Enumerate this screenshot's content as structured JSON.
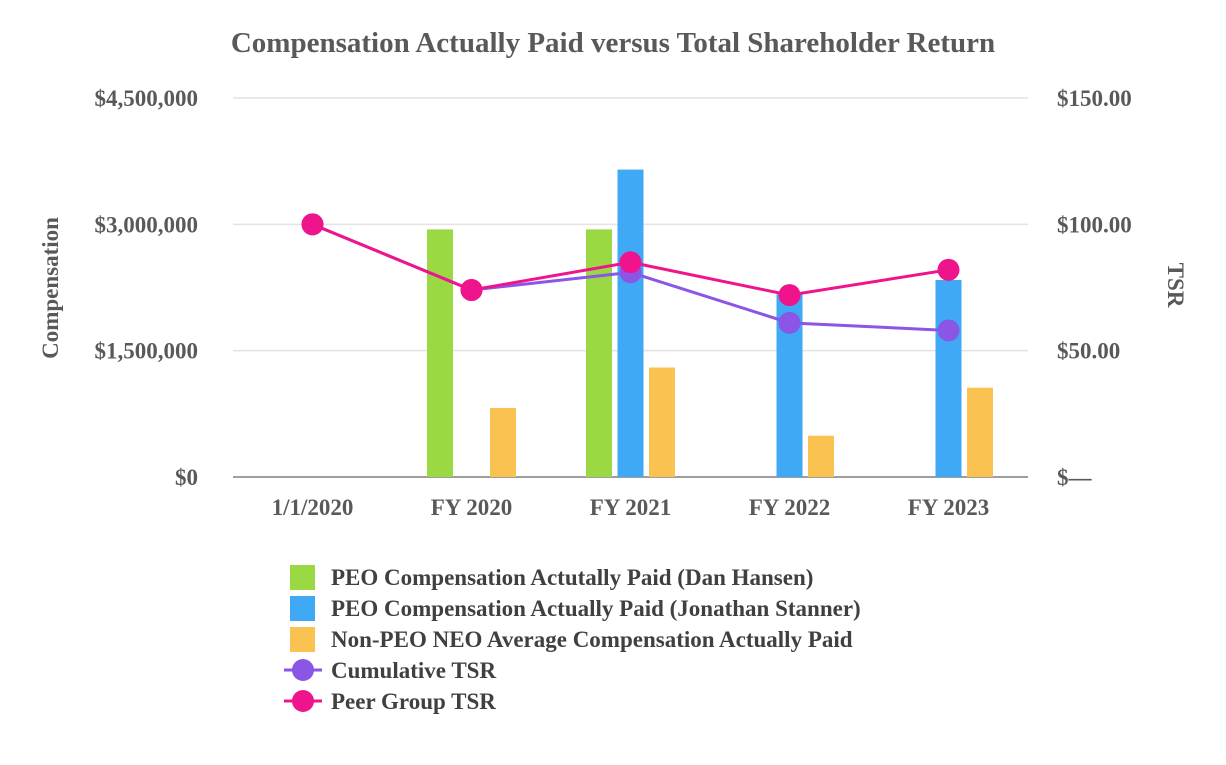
{
  "chart_data": {
    "type": "bar",
    "title": "Compensation Actually Paid versus Total Shareholder Return",
    "categories": [
      "1/1/2020",
      "FY 2020",
      "FY 2021",
      "FY 2022",
      "FY 2023"
    ],
    "ylabel": "Compensation",
    "y2label": "TSR",
    "ylim": [
      0,
      4500000
    ],
    "y2lim": [
      0,
      150
    ],
    "y_ticks": [
      0,
      1500000,
      3000000,
      4500000
    ],
    "y_tick_labels": [
      "$0",
      "$1,500,000",
      "$3,000,000",
      "$4,500,000"
    ],
    "y2_ticks": [
      0,
      50,
      100,
      150
    ],
    "y2_tick_labels": [
      "$—",
      "$50.00",
      "$100.00",
      "$150.00"
    ],
    "grid": true,
    "legend_position": "bottom",
    "bar_series": [
      {
        "name": "PEO Compensation Actutally Paid (Dan Hansen)",
        "color": "#9ad944",
        "values": [
          null,
          2940000,
          2940000,
          null,
          null
        ]
      },
      {
        "name": "PEO Compensation Actually Paid (Jonathan Stanner)",
        "color": "#3fa9f5",
        "values": [
          null,
          null,
          3650000,
          2170000,
          2340000
        ]
      },
      {
        "name": "Non-PEO NEO Average Compensation Actually Paid",
        "color": "#f9c251",
        "values": [
          null,
          820000,
          1300000,
          490000,
          1060000
        ]
      }
    ],
    "line_series": [
      {
        "name": "Cumulative TSR",
        "color": "#8b55e6",
        "axis": "right",
        "values": [
          100,
          74,
          81,
          61,
          58
        ]
      },
      {
        "name": "Peer Group TSR",
        "color": "#f0148c",
        "axis": "right",
        "values": [
          100,
          74,
          85,
          72,
          82
        ]
      }
    ]
  }
}
